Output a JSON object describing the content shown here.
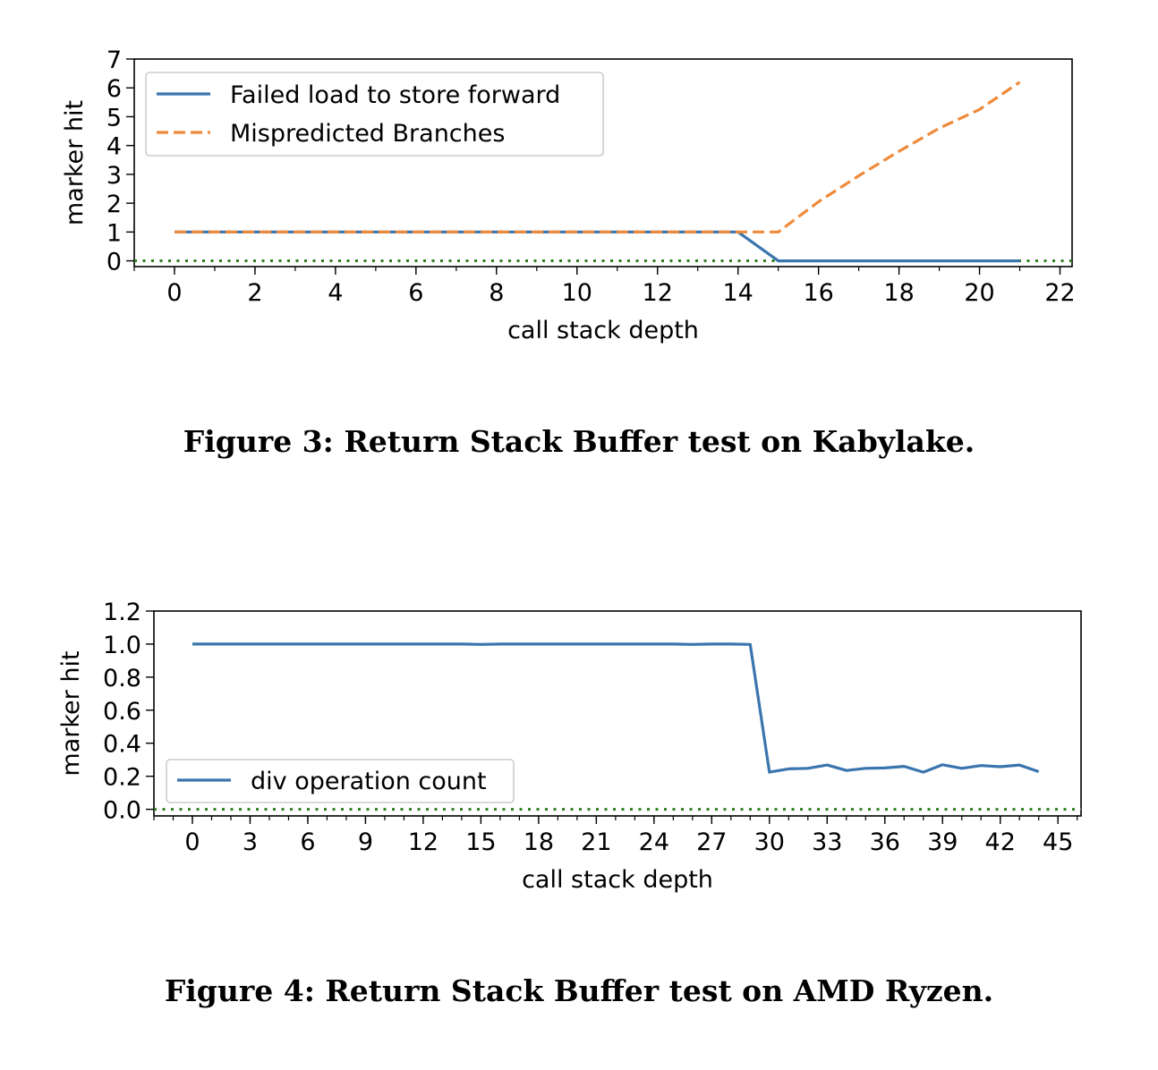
{
  "chart_data": [
    {
      "type": "line",
      "xlabel": "call stack depth",
      "ylabel": "marker hit",
      "xlim": [
        -1,
        22.3
      ],
      "ylim": [
        -0.2,
        7
      ],
      "xticks": [
        0,
        2,
        4,
        6,
        8,
        10,
        12,
        14,
        16,
        18,
        20,
        22
      ],
      "xtick_labels": [
        "0",
        "2",
        "4",
        "6",
        "8",
        "10",
        "12",
        "14",
        "16",
        "18",
        "20",
        "22"
      ],
      "yticks": [
        0,
        1,
        2,
        3,
        4,
        5,
        6,
        7
      ],
      "ytick_labels": [
        "0",
        "1",
        "2",
        "3",
        "4",
        "5",
        "6",
        "7"
      ],
      "minor_xtick_step": 1,
      "grid": false,
      "legend_placement": "top-left",
      "reference_line": {
        "y": 0,
        "color": "#2e7d1f",
        "style": "dotted"
      },
      "series": [
        {
          "name": "Failed load to store forward",
          "color": "#3a75ad",
          "style": "solid",
          "x": [
            0,
            1,
            2,
            3,
            4,
            5,
            6,
            7,
            8,
            9,
            10,
            11,
            12,
            13,
            14,
            15,
            16,
            17,
            18,
            19,
            20,
            21
          ],
          "y": [
            1,
            1,
            1,
            1,
            1,
            1,
            1,
            1,
            1,
            1,
            1,
            1,
            1,
            1,
            1,
            0,
            0,
            0,
            0,
            0,
            0,
            0
          ]
        },
        {
          "name": "Mispredicted Branches",
          "color": "#ef8a3a",
          "style": "dashed",
          "x": [
            0,
            1,
            2,
            3,
            4,
            5,
            6,
            7,
            8,
            9,
            10,
            11,
            12,
            13,
            14,
            15,
            16,
            17,
            18,
            19,
            20,
            21
          ],
          "y": [
            1,
            1,
            1,
            1,
            1,
            1,
            1,
            1,
            1,
            1,
            1,
            1,
            1,
            1,
            1,
            1,
            2.05,
            2.95,
            3.8,
            4.6,
            5.25,
            6.2
          ]
        }
      ]
    },
    {
      "type": "line",
      "xlabel": "call stack depth",
      "ylabel": "marker hit",
      "xlim": [
        -2,
        46.2
      ],
      "ylim": [
        -0.04,
        1.2
      ],
      "xticks": [
        0,
        3,
        6,
        9,
        12,
        15,
        18,
        21,
        24,
        27,
        30,
        33,
        36,
        39,
        42,
        45
      ],
      "xtick_labels": [
        "0",
        "3",
        "6",
        "9",
        "12",
        "15",
        "18",
        "21",
        "24",
        "27",
        "30",
        "33",
        "36",
        "39",
        "42",
        "45"
      ],
      "yticks": [
        0.0,
        0.2,
        0.4,
        0.6,
        0.8,
        1.0,
        1.2
      ],
      "ytick_labels": [
        "0.0",
        "0.2",
        "0.4",
        "0.6",
        "0.8",
        "1.0",
        "1.2"
      ],
      "minor_xtick_step": 1,
      "grid": false,
      "legend_placement": "lower-left",
      "reference_line": {
        "y": 0,
        "color": "#2e7d1f",
        "style": "dotted"
      },
      "series": [
        {
          "name": "div operation count",
          "color": "#3a75ad",
          "style": "solid",
          "x": [
            0,
            1,
            2,
            3,
            4,
            5,
            6,
            7,
            8,
            9,
            10,
            11,
            12,
            13,
            14,
            15,
            16,
            17,
            18,
            19,
            20,
            21,
            22,
            23,
            24,
            25,
            26,
            27,
            28,
            29,
            30,
            31,
            32,
            33,
            34,
            35,
            36,
            37,
            38,
            39,
            40,
            41,
            42,
            43,
            44
          ],
          "y": [
            1.0,
            1.0,
            1.0,
            1.0,
            1.0,
            1.0,
            1.0,
            1.0,
            1.0,
            1.0,
            1.0,
            1.0,
            1.0,
            1.0,
            1.0,
            0.998,
            1.0,
            1.0,
            1.0,
            1.0,
            1.0,
            1.0,
            1.0,
            1.0,
            1.0,
            1.0,
            0.998,
            1.0,
            1.0,
            0.998,
            0.225,
            0.245,
            0.248,
            0.268,
            0.235,
            0.248,
            0.25,
            0.26,
            0.225,
            0.27,
            0.248,
            0.265,
            0.258,
            0.268,
            0.228
          ]
        }
      ]
    }
  ],
  "captions": {
    "fig3": "Figure 3: Return Stack Buffer test on Kabylake.",
    "fig4": "Figure 4: Return Stack Buffer test on AMD Ryzen."
  }
}
